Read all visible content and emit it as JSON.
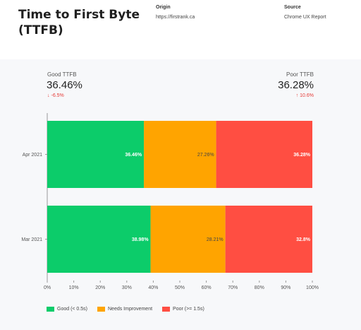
{
  "header": {
    "title": "Time to First Byte (TTFB)",
    "origin_label": "Origin",
    "origin_value": "https://firstrank.ca",
    "source_label": "Source",
    "source_value": "Chrome UX Report"
  },
  "summary": {
    "good": {
      "label": "Good TTFB",
      "value": "36.46%",
      "delta": "-6.5%"
    },
    "poor": {
      "label": "Poor TTFB",
      "value": "36.28%",
      "delta": "10.6%"
    }
  },
  "colors": {
    "good": "#0ccc6a",
    "needs_improvement": "#ffa400",
    "poor": "#ff4e42"
  },
  "chart_data": {
    "type": "bar",
    "orientation": "horizontal",
    "stacked": true,
    "categories": [
      "Apr 2021",
      "Mar 2021"
    ],
    "series": [
      {
        "name": "Good (< 0.5s)",
        "values": [
          36.46,
          38.98
        ],
        "labels": [
          "36.46%",
          "38.98%"
        ]
      },
      {
        "name": "Needs Improvement",
        "values": [
          27.26,
          28.21
        ],
        "labels": [
          "27.26%",
          "28.21%"
        ]
      },
      {
        "name": "Poor (>= 1.5s)",
        "values": [
          36.28,
          32.8
        ],
        "labels": [
          "36.28%",
          "32.8%"
        ]
      }
    ],
    "xlim": [
      0,
      100
    ],
    "x_ticks": [
      "0%",
      "10%",
      "20%",
      "30%",
      "40%",
      "50%",
      "60%",
      "70%",
      "80%",
      "90%",
      "100%"
    ],
    "grid": false,
    "legend_position": "bottom-left"
  }
}
